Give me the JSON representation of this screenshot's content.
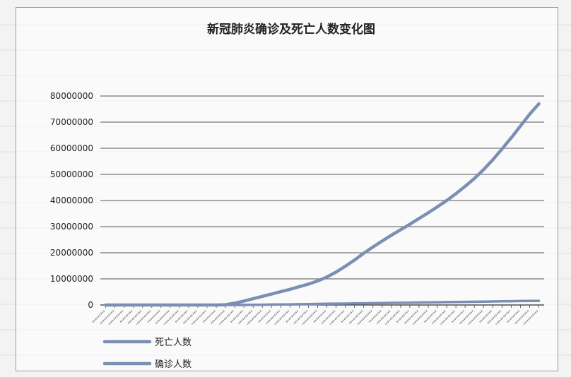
{
  "chart_data": {
    "type": "line",
    "title": "新冠肺炎确诊及死亡人数变化图",
    "xlabel": "",
    "ylabel": "",
    "ylim": [
      0,
      80000000
    ],
    "y_ticks": [
      "0",
      "10000000",
      "20000000",
      "30000000",
      "40000000",
      "50000000",
      "60000000",
      "70000000",
      "80000000"
    ],
    "y_tick_values": [
      0,
      10000000,
      20000000,
      30000000,
      40000000,
      50000000,
      60000000,
      70000000,
      80000000
    ],
    "grid": true,
    "legend_position": "bottom-left",
    "x_tick_count": 48,
    "series": [
      {
        "name": "死亡人数",
        "color": "#7c8fb3",
        "values": [
          0,
          0,
          0,
          0,
          0,
          0,
          0,
          0,
          0,
          0,
          0,
          0,
          0,
          100000,
          700000,
          1500000,
          2400000,
          3300000,
          4200000,
          5100000,
          6000000,
          7000000,
          8000000,
          9200000,
          10700000,
          12600000,
          14800000,
          17200000,
          19800000,
          22200000,
          24500000,
          26700000,
          28800000,
          30900000,
          33100000,
          35300000,
          37600000,
          40000000,
          42600000,
          45400000,
          48400000,
          51800000,
          55600000,
          59700000,
          64000000,
          68500000,
          73000000,
          77000000
        ]
      },
      {
        "name": "确诊人数",
        "color": "#7c8fb3",
        "values": [
          0,
          0,
          0,
          0,
          0,
          0,
          0,
          0,
          0,
          0,
          0,
          0,
          0,
          0,
          10000,
          30000,
          60000,
          100000,
          150000,
          200000,
          250000,
          300000,
          350000,
          400000,
          450000,
          500000,
          550000,
          600000,
          650000,
          700000,
          750000,
          800000,
          850000,
          900000,
          950000,
          1000000,
          1050000,
          1100000,
          1150000,
          1200000,
          1250000,
          1300000,
          1350000,
          1400000,
          1450000,
          1500000,
          1550000,
          1600000
        ]
      }
    ]
  }
}
